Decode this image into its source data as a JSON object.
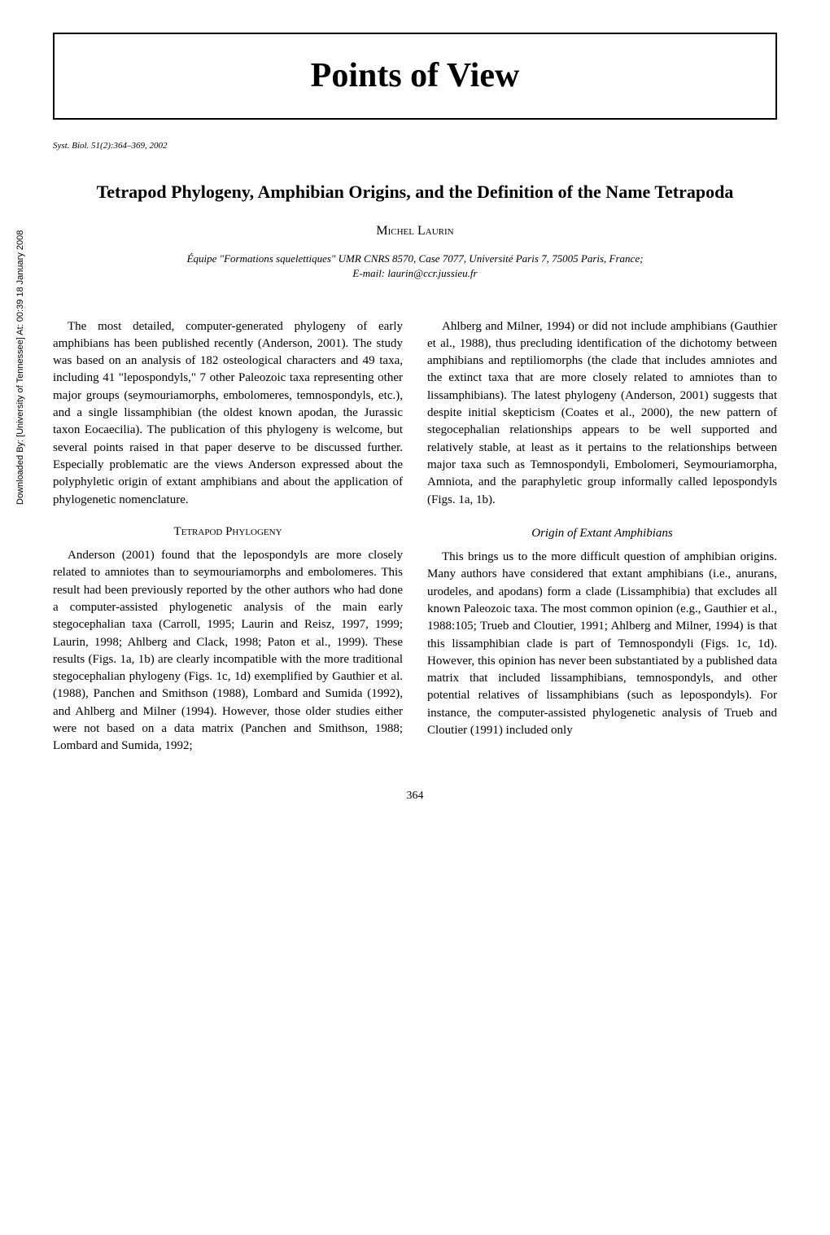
{
  "sidebar": {
    "download_info": "Downloaded By: [University of Tennessee] At: 00:39 18 January 2008"
  },
  "header": {
    "main_title": "Points of View",
    "citation": "Syst. Biol. 51(2):364–369, 2002"
  },
  "article": {
    "title": "Tetrapod Phylogeny, Amphibian Origins, and the Definition of the Name Tetrapoda",
    "author": "Michel Laurin",
    "affiliation_line1": "Équipe \"Formations squelettiques\" UMR CNRS 8570, Case 7077, Université Paris 7, 75005 Paris, France;",
    "affiliation_line2": "E-mail: laurin@ccr.jussieu.fr"
  },
  "left_column": {
    "para1": "The most detailed, computer-generated phylogeny of early amphibians has been published recently (Anderson, 2001). The study was based on an analysis of 182 osteological characters and 49 taxa, including 41 \"lepospondyls,\" 7 other Paleozoic taxa representing other major groups (seymouriamorphs, embolomeres, temnospondyls, etc.), and a single lissamphibian (the oldest known apodan, the Jurassic taxon Eocaecilia). The publication of this phylogeny is welcome, but several points raised in that paper deserve to be discussed further. Especially problematic are the views Anderson expressed about the polyphyletic origin of extant amphibians and about the application of phylogenetic nomenclature.",
    "section_heading": "Tetrapod Phylogeny",
    "para2": "Anderson (2001) found that the lepospondyls are more closely related to amniotes than to seymouriamorphs and embolomeres. This result had been previously reported by the other authors who had done a computer-assisted phylogenetic analysis of the main early stegocephalian taxa (Carroll, 1995; Laurin and Reisz, 1997, 1999; Laurin, 1998; Ahlberg and Clack, 1998; Paton et al., 1999). These results (Figs. 1a, 1b) are clearly incompatible with the more traditional stegocephalian phylogeny (Figs. 1c, 1d) exemplified by Gauthier et al. (1988), Panchen and Smithson (1988), Lombard and Sumida (1992), and Ahlberg and Milner (1994). However, those older studies either were not based on a data matrix (Panchen and Smithson, 1988; Lombard and Sumida, 1992;"
  },
  "right_column": {
    "para1": "Ahlberg and Milner, 1994) or did not include amphibians (Gauthier et al., 1988), thus precluding identification of the dichotomy between amphibians and reptiliomorphs (the clade that includes amniotes and the extinct taxa that are more closely related to amniotes than to lissamphibians). The latest phylogeny (Anderson, 2001) suggests that despite initial skepticism (Coates et al., 2000), the new pattern of stegocephalian relationships appears to be well supported and relatively stable, at least as it pertains to the relationships between major taxa such as Temnospondyli, Embolomeri, Seymouriamorpha, Amniota, and the paraphyletic group informally called lepospondyls (Figs. 1a, 1b).",
    "subsection_heading": "Origin of Extant Amphibians",
    "para2": "This brings us to the more difficult question of amphibian origins. Many authors have considered that extant amphibians (i.e., anurans, urodeles, and apodans) form a clade (Lissamphibia) that excludes all known Paleozoic taxa. The most common opinion (e.g., Gauthier et al., 1988:105; Trueb and Cloutier, 1991; Ahlberg and Milner, 1994) is that this lissamphibian clade is part of Temnospondyli (Figs. 1c, 1d). However, this opinion has never been substantiated by a published data matrix that included lissamphibians, temnospondyls, and other potential relatives of lissamphibians (such as lepospondyls). For instance, the computer-assisted phylogenetic analysis of Trueb and Cloutier (1991) included only"
  },
  "footer": {
    "page_number": "364"
  }
}
